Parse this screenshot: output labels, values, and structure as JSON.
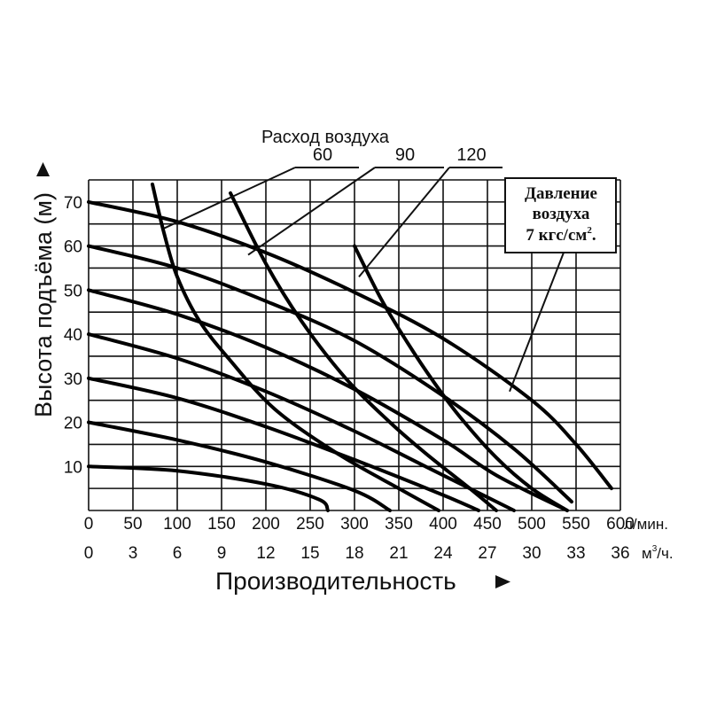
{
  "chart_data": {
    "type": "line",
    "title": "",
    "ylabel": "Высота подъёма (м)",
    "xlabel": "Производительность",
    "x_primary": {
      "unit": "л/мин.",
      "range": [
        0,
        600
      ],
      "ticks": [
        "0",
        "50",
        "100",
        "150",
        "200",
        "250",
        "300",
        "350",
        "400",
        "450",
        "500",
        "550",
        "600"
      ]
    },
    "x_secondary": {
      "unit": "м³/ч.",
      "unit_base": "м",
      "unit_sup": "3",
      "unit_tail": "/ч.",
      "ticks": [
        "0",
        "3",
        "6",
        "9",
        "12",
        "15",
        "18",
        "21",
        "24",
        "27",
        "30",
        "33",
        "36"
      ]
    },
    "y": {
      "range": [
        0,
        75
      ],
      "ticks": [
        "10",
        "20",
        "30",
        "40",
        "50",
        "60",
        "70"
      ]
    },
    "grid": true,
    "air_flow_title": "Расход воздуха",
    "air_flow_labels": [
      {
        "label": "60",
        "target": [
          85,
          64
        ]
      },
      {
        "label": "90",
        "target": [
          180,
          58
        ]
      },
      {
        "label": "120",
        "target": [
          305,
          53
        ]
      }
    ],
    "pressure_note": {
      "lines": [
        "Давление",
        "воздуха",
        "7 кгс/см"
      ],
      "sup": "2",
      "tail": ".",
      "target": [
        475,
        27
      ]
    },
    "series": [
      {
        "name": "Высота 70 м",
        "points": [
          [
            0,
            70
          ],
          [
            100,
            65.5
          ],
          [
            200,
            58.5
          ],
          [
            300,
            49.5
          ],
          [
            400,
            39
          ],
          [
            500,
            25
          ],
          [
            550,
            15
          ],
          [
            590,
            5
          ]
        ]
      },
      {
        "name": "Высота 60 м",
        "points": [
          [
            0,
            60
          ],
          [
            100,
            55
          ],
          [
            200,
            47.5
          ],
          [
            300,
            38.5
          ],
          [
            400,
            26
          ],
          [
            480,
            14
          ],
          [
            545,
            2
          ]
        ]
      },
      {
        "name": "Высота 50 м",
        "points": [
          [
            0,
            50
          ],
          [
            100,
            44.5
          ],
          [
            200,
            37
          ],
          [
            300,
            27.5
          ],
          [
            400,
            16
          ],
          [
            460,
            8
          ],
          [
            540,
            0
          ]
        ]
      },
      {
        "name": "Высота 40 м",
        "points": [
          [
            0,
            40
          ],
          [
            100,
            34.5
          ],
          [
            200,
            27
          ],
          [
            300,
            18
          ],
          [
            380,
            10
          ],
          [
            480,
            0
          ]
        ]
      },
      {
        "name": "Высота 30 м",
        "points": [
          [
            0,
            30
          ],
          [
            100,
            25.5
          ],
          [
            200,
            19
          ],
          [
            300,
            11.5
          ],
          [
            400,
            3.5
          ],
          [
            440,
            0
          ]
        ]
      },
      {
        "name": "Высота 20 м",
        "points": [
          [
            0,
            20
          ],
          [
            100,
            16
          ],
          [
            200,
            11
          ],
          [
            300,
            4.5
          ],
          [
            340,
            0
          ]
        ]
      },
      {
        "name": "Высота 10 м",
        "points": [
          [
            0,
            10
          ],
          [
            100,
            9
          ],
          [
            200,
            6
          ],
          [
            260,
            2.5
          ],
          [
            270,
            0
          ]
        ]
      },
      {
        "name": "Расход воздуха 60",
        "points": [
          [
            72,
            74
          ],
          [
            85,
            63
          ],
          [
            100,
            53
          ],
          [
            125,
            43
          ],
          [
            160,
            34
          ],
          [
            210,
            23
          ],
          [
            280,
            13
          ],
          [
            350,
            5
          ],
          [
            395,
            0
          ]
        ]
      },
      {
        "name": "Расход воздуха 90",
        "points": [
          [
            160,
            72
          ],
          [
            200,
            56
          ],
          [
            240,
            43
          ],
          [
            290,
            30
          ],
          [
            340,
            20
          ],
          [
            380,
            13
          ],
          [
            430,
            5
          ],
          [
            460,
            0
          ]
        ]
      },
      {
        "name": "Расход воздуха 120",
        "points": [
          [
            300,
            60
          ],
          [
            330,
            48
          ],
          [
            360,
            38
          ],
          [
            390,
            29
          ],
          [
            420,
            21
          ],
          [
            460,
            12
          ],
          [
            500,
            5
          ],
          [
            540,
            0
          ]
        ]
      }
    ]
  }
}
